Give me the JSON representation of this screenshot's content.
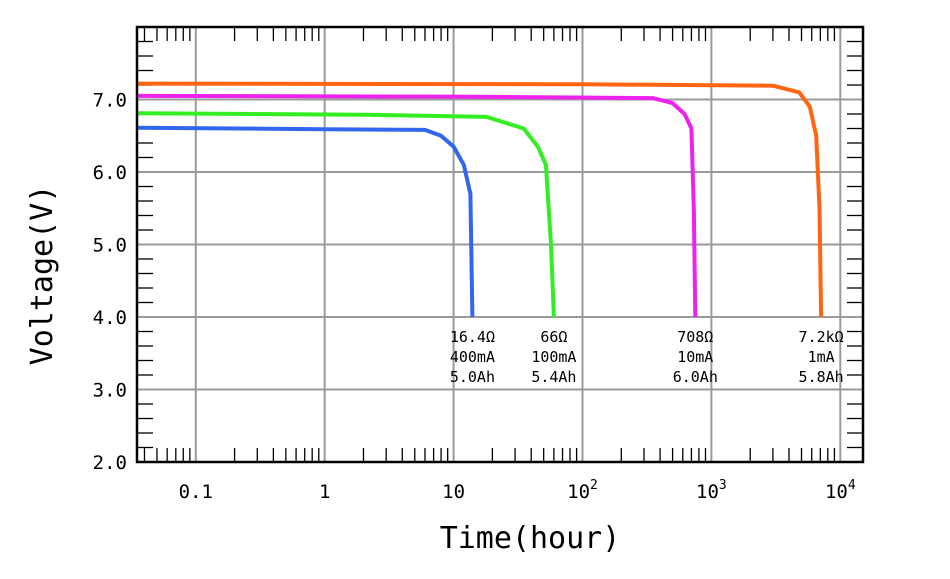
{
  "chart_data": {
    "type": "line",
    "xlabel": "Time(hour)",
    "ylabel": "Voltage(V)",
    "x_scale": "log",
    "xlim": [
      0.035,
      15000
    ],
    "ylim": [
      2.0,
      8.0
    ],
    "grid": true,
    "x_ticks": [
      {
        "value": 0.1,
        "label": "0.1"
      },
      {
        "value": 1,
        "label": "1"
      },
      {
        "value": 10,
        "label": "10"
      },
      {
        "value": 100,
        "label": "10",
        "sup": "2"
      },
      {
        "value": 1000,
        "label": "10",
        "sup": "3"
      },
      {
        "value": 10000,
        "label": "10",
        "sup": "4"
      }
    ],
    "y_ticks": [
      {
        "value": 2.0,
        "label": "2.0"
      },
      {
        "value": 3.0,
        "label": "3.0"
      },
      {
        "value": 4.0,
        "label": "4.0"
      },
      {
        "value": 5.0,
        "label": "5.0"
      },
      {
        "value": 6.0,
        "label": "6.0"
      },
      {
        "value": 7.0,
        "label": "7.0"
      }
    ],
    "series": [
      {
        "color": "#3366ee",
        "points": [
          [
            0.035,
            6.61
          ],
          [
            1,
            6.59
          ],
          [
            6,
            6.58
          ],
          [
            8,
            6.5
          ],
          [
            10,
            6.35
          ],
          [
            12,
            6.1
          ],
          [
            13.5,
            5.7
          ],
          [
            14,
            4.0
          ]
        ],
        "annotation": [
          "16.4Ω",
          "400mA",
          "5.0Ah"
        ]
      },
      {
        "color": "#33ee22",
        "points": [
          [
            0.035,
            6.81
          ],
          [
            2,
            6.79
          ],
          [
            18,
            6.76
          ],
          [
            35,
            6.6
          ],
          [
            45,
            6.35
          ],
          [
            52,
            6.1
          ],
          [
            57,
            5.0
          ],
          [
            60,
            4.0
          ]
        ],
        "annotation": [
          "66Ω",
          "100mA",
          "5.4Ah"
        ]
      },
      {
        "color": "#ee22ee",
        "points": [
          [
            0.035,
            7.05
          ],
          [
            10,
            7.04
          ],
          [
            350,
            7.02
          ],
          [
            500,
            6.95
          ],
          [
            620,
            6.8
          ],
          [
            700,
            6.6
          ],
          [
            730,
            5.5
          ],
          [
            750,
            4.0
          ]
        ],
        "annotation": [
          "708Ω",
          "10mA",
          "6.0Ah"
        ]
      },
      {
        "color": "#ff6611",
        "points": [
          [
            0.035,
            7.22
          ],
          [
            100,
            7.21
          ],
          [
            3000,
            7.19
          ],
          [
            4800,
            7.1
          ],
          [
            5800,
            6.9
          ],
          [
            6500,
            6.5
          ],
          [
            6900,
            5.5
          ],
          [
            7100,
            4.0
          ]
        ],
        "annotation": [
          "7.2kΩ",
          "1mA",
          "5.8Ah"
        ]
      }
    ]
  }
}
